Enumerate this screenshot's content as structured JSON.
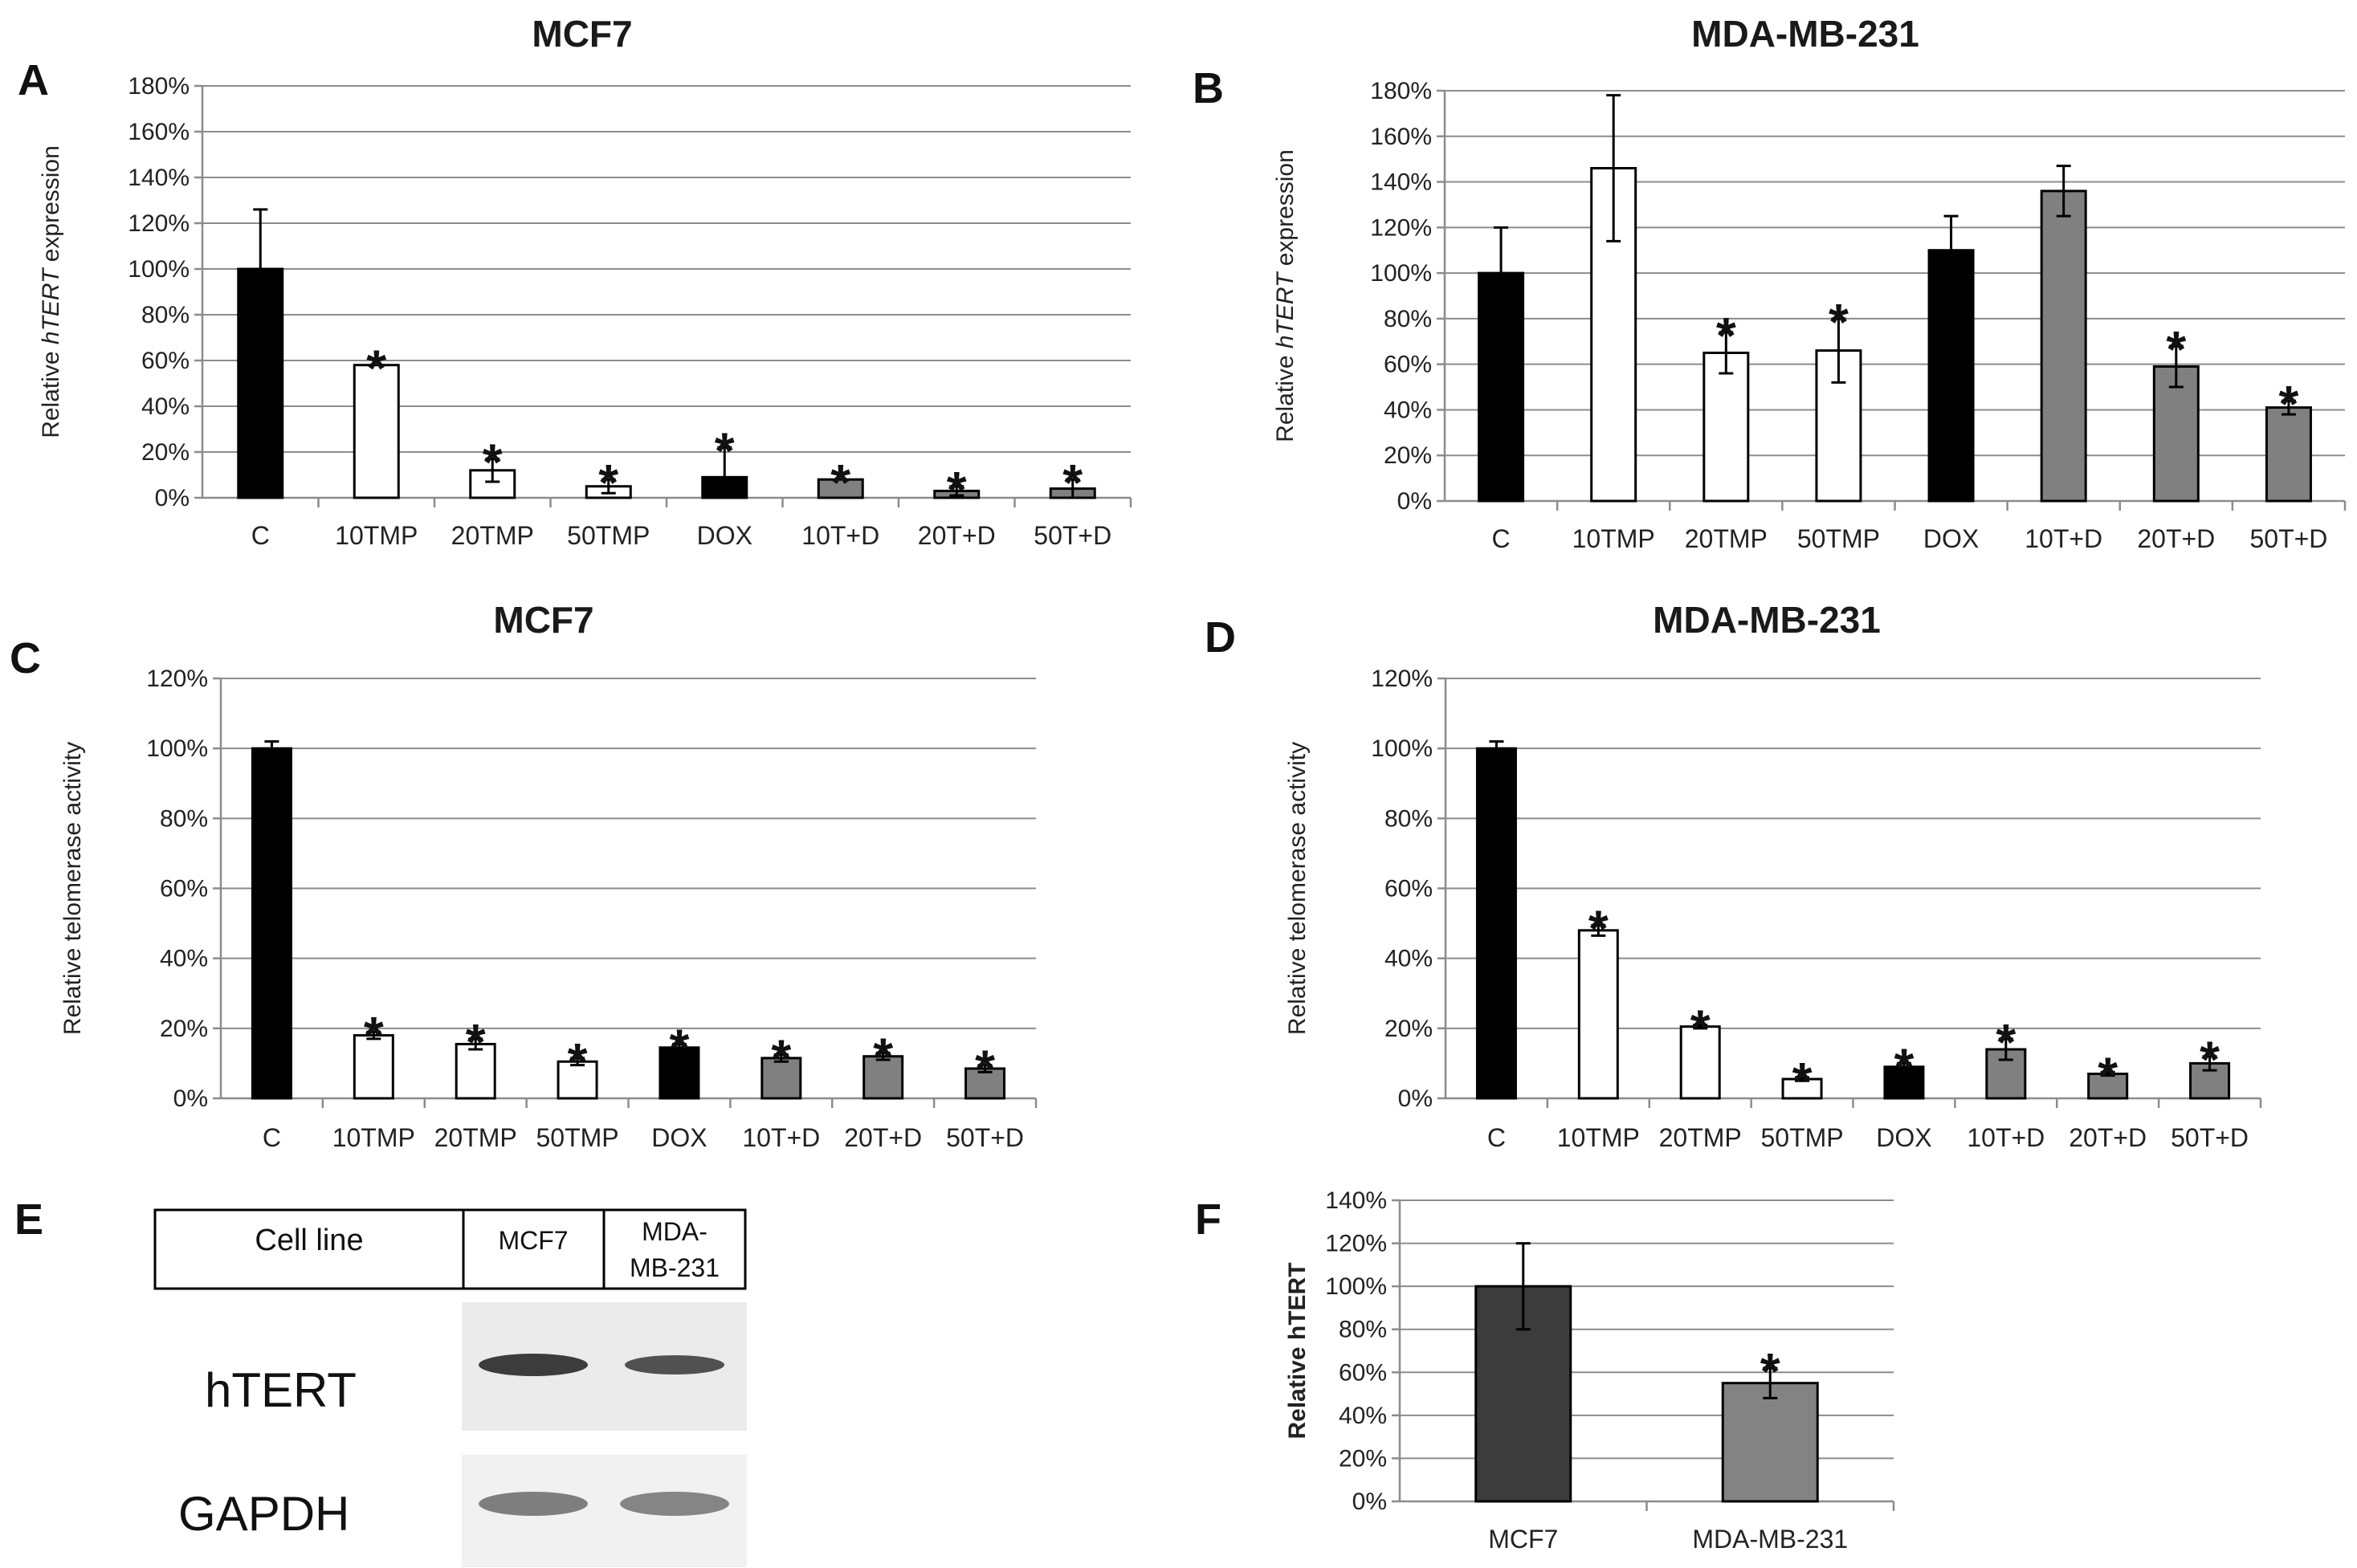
{
  "colors": {
    "black": "#000000",
    "white": "#ffffff",
    "gray": "#808080",
    "darkgray": "#3c3c3c",
    "midgray": "#838383"
  },
  "panel_letters": [
    "A",
    "B",
    "C",
    "D",
    "E",
    "F"
  ],
  "chart_data": [
    {
      "type": "bar",
      "panel": "A",
      "title": "MCF7",
      "ylabel_parts": [
        "Relative ",
        "hTERT",
        " expression"
      ],
      "ylim": [
        0,
        180
      ],
      "yticks": [
        0,
        20,
        40,
        60,
        80,
        100,
        120,
        140,
        160,
        180
      ],
      "ytick_labels": [
        "0%",
        "20%",
        "40%",
        "60%",
        "80%",
        "100%",
        "120%",
        "140%",
        "160%",
        "180%"
      ],
      "categories": [
        "C",
        "10TMP",
        "20TMP",
        "50TMP",
        "DOX",
        "10T+D",
        "20T+D",
        "50T+D"
      ],
      "values": [
        100,
        58,
        12,
        5,
        9,
        8,
        3,
        4
      ],
      "errors": [
        26,
        0,
        5,
        3,
        13,
        0,
        2,
        4
      ],
      "fills": [
        "black",
        "white",
        "white",
        "white",
        "black",
        "gray",
        "gray",
        "gray"
      ],
      "significant": [
        false,
        true,
        true,
        true,
        true,
        true,
        true,
        true
      ],
      "star_symbol": "*"
    },
    {
      "type": "bar",
      "panel": "B",
      "title": "MDA-MB-231",
      "ylabel_parts": [
        "Relative ",
        "hTERT",
        " expression"
      ],
      "ylim": [
        0,
        180
      ],
      "yticks": [
        0,
        20,
        40,
        60,
        80,
        100,
        120,
        140,
        160,
        180
      ],
      "ytick_labels": [
        "0%",
        "20%",
        "40%",
        "60%",
        "80%",
        "100%",
        "120%",
        "140%",
        "160%",
        "180%"
      ],
      "categories": [
        "C",
        "10TMP",
        "20TMP",
        "50TMP",
        "DOX",
        "10T+D",
        "20T+D",
        "50T+D"
      ],
      "values": [
        100,
        146,
        65,
        66,
        110,
        136,
        59,
        41
      ],
      "errors": [
        20,
        32,
        9,
        14,
        15,
        11,
        9,
        3
      ],
      "fills": [
        "black",
        "white",
        "white",
        "white",
        "black",
        "gray",
        "gray",
        "gray"
      ],
      "significant": [
        false,
        false,
        true,
        true,
        false,
        false,
        true,
        true
      ],
      "star_symbol": "*"
    },
    {
      "type": "bar",
      "panel": "C",
      "title": "MCF7",
      "ylabel_parts": [
        "Relative telomerase activity"
      ],
      "ylim": [
        0,
        120
      ],
      "yticks": [
        0,
        20,
        40,
        60,
        80,
        100,
        120
      ],
      "ytick_labels": [
        "0%",
        "20%",
        "40%",
        "60%",
        "80%",
        "100%",
        "120%"
      ],
      "categories": [
        "C",
        "10TMP",
        "20TMP",
        "50TMP",
        "DOX",
        "10T+D",
        "20T+D",
        "50T+D"
      ],
      "values": [
        100,
        18,
        15.5,
        10.5,
        14.5,
        11.5,
        12,
        8.5
      ],
      "errors": [
        2,
        1,
        1.5,
        1,
        1,
        1,
        1,
        1
      ],
      "fills": [
        "black",
        "white",
        "white",
        "white",
        "black",
        "gray",
        "gray",
        "gray"
      ],
      "significant": [
        false,
        true,
        true,
        true,
        true,
        true,
        true,
        true
      ],
      "star_symbol": "*"
    },
    {
      "type": "bar",
      "panel": "D",
      "title": "MDA-MB-231",
      "ylabel_parts": [
        "Relative telomerase activity"
      ],
      "ylim": [
        0,
        120
      ],
      "yticks": [
        0,
        20,
        40,
        60,
        80,
        100,
        120
      ],
      "ytick_labels": [
        "0%",
        "20%",
        "40%",
        "60%",
        "80%",
        "100%",
        "120%"
      ],
      "categories": [
        "C",
        "10TMP",
        "20TMP",
        "50TMP",
        "DOX",
        "10T+D",
        "20T+D",
        "50T+D"
      ],
      "values": [
        100,
        48,
        20.5,
        5.5,
        9,
        14,
        7,
        10
      ],
      "errors": [
        2,
        1.5,
        0.5,
        0.5,
        1,
        3,
        0.5,
        2
      ],
      "fills": [
        "black",
        "white",
        "white",
        "white",
        "black",
        "gray",
        "gray",
        "gray"
      ],
      "significant": [
        false,
        true,
        true,
        true,
        true,
        true,
        true,
        true
      ],
      "star_symbol": "*"
    },
    {
      "type": "bar",
      "panel": "F",
      "title": "",
      "ylabel_parts": [
        "Relative hTERT"
      ],
      "ylim": [
        0,
        140
      ],
      "yticks": [
        0,
        20,
        40,
        60,
        80,
        100,
        120,
        140
      ],
      "ytick_labels": [
        "0%",
        "20%",
        "40%",
        "60%",
        "80%",
        "100%",
        "120%",
        "140%"
      ],
      "categories": [
        "MCF7",
        "MDA-MB-231"
      ],
      "values": [
        100,
        55
      ],
      "errors": [
        20,
        7
      ],
      "fills": [
        "darkgray",
        "midgray"
      ],
      "significant": [
        false,
        true
      ],
      "star_symbol": "*"
    }
  ],
  "blot": {
    "header": "Cell line",
    "cols": [
      "MCF7",
      "MDA-MB-231"
    ],
    "col2_lines": [
      "MDA-",
      "MB-231"
    ],
    "rows": [
      "hTERT",
      "GAPDH"
    ]
  }
}
